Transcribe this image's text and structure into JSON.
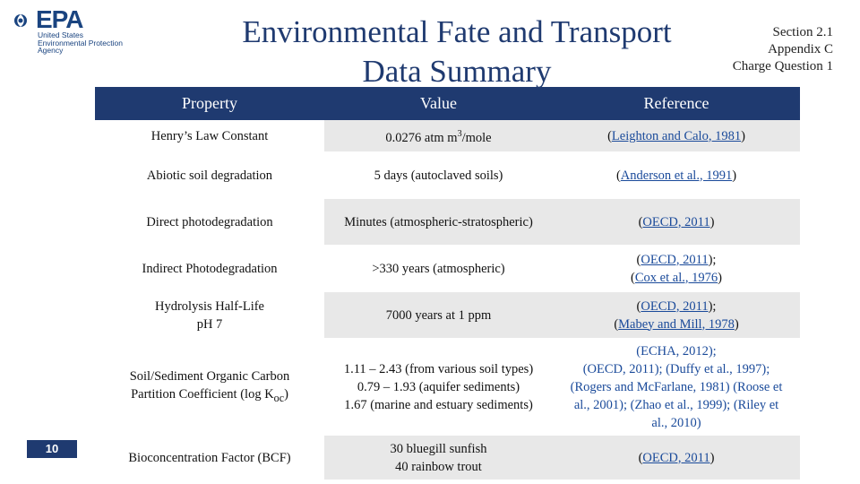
{
  "logo": {
    "wordmark": "EPA",
    "line1": "United States",
    "line2": "Environmental Protection",
    "line3": "Agency"
  },
  "title_line1": "Environmental Fate and Transport",
  "title_line2": "Data Summary",
  "section": {
    "line1": "Section 2.1",
    "line2": "Appendix C",
    "line3": "Charge Question 1"
  },
  "table": {
    "headers": [
      "Property",
      "Value",
      "Reference"
    ],
    "rows": [
      {
        "property": "Henry’s Law Constant",
        "value_pre": "0.0276 atm m",
        "value_sup": "3",
        "value_post": "/mole",
        "refs": [
          [
            "(",
            "Leighton and Calo, 1981",
            ")"
          ]
        ]
      },
      {
        "property": "Abiotic soil degradation",
        "value": "5 days (autoclaved soils)",
        "refs": [
          [
            "(",
            "Anderson et al., 1991",
            ")"
          ]
        ]
      },
      {
        "property": "Direct photodegradation",
        "value": "Minutes (atmospheric-stratospheric)",
        "refs": [
          [
            "(",
            "OECD, 2011",
            ")"
          ]
        ]
      },
      {
        "property": "Indirect Photodegradation",
        "value": ">330 years (atmospheric)",
        "refs": [
          [
            "(",
            "OECD, 2011",
            ");"
          ],
          [
            "(",
            "Cox et al., 1976",
            ")"
          ]
        ]
      },
      {
        "property_line1": "Hydrolysis Half-Life",
        "property_line2": "pH 7",
        "value": "7000 years at 1 ppm",
        "refs": [
          [
            "(",
            "OECD, 2011",
            ");"
          ],
          [
            "(",
            "Mabey and Mill, 1978",
            ")"
          ]
        ]
      },
      {
        "property_line1": "Soil/Sediment Organic Carbon",
        "property_line2_pre": "Partition Coefficient (log K",
        "property_line2_sub": "oc",
        "property_line2_post": ")",
        "value_lines": [
          "1.11 – 2.43 (from various soil types)",
          "0.79 – 1.93 (aquifer sediments)",
          "1.67 (marine and estuary sediments)"
        ],
        "ref_lines": [
          "(ECHA, 2012);",
          "(OECD, 2011); (Duffy et al., 1997);",
          "(Rogers and McFarlane, 1981) (Roose et",
          "al., 2001); (Zhao et al., 1999); (Riley et",
          "al., 2010)"
        ]
      },
      {
        "property": "Bioconcentration Factor (BCF)",
        "value_lines": [
          "30 bluegill sunfish",
          "40 rainbow trout"
        ],
        "refs": [
          [
            "(",
            "OECD, 2011",
            ")"
          ]
        ]
      }
    ]
  },
  "page_number": "10"
}
